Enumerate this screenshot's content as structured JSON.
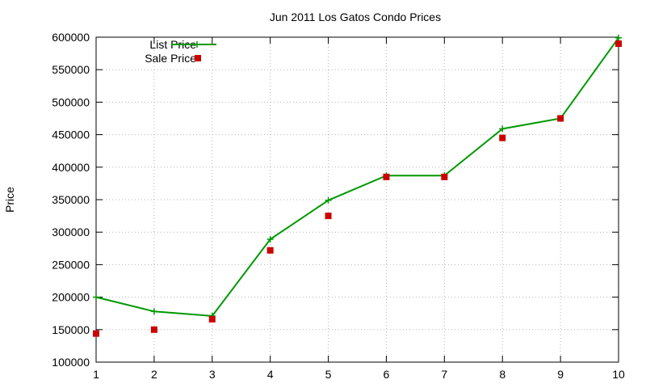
{
  "chart_data": {
    "type": "line",
    "title": "Jun 2011 Los Gatos Condo Prices",
    "xlabel": "",
    "ylabel": "Price",
    "x": [
      1,
      2,
      3,
      4,
      5,
      6,
      7,
      8,
      9,
      10
    ],
    "xlim": [
      1,
      10
    ],
    "ylim": [
      100000,
      600000
    ],
    "xticks": [
      "1",
      "2",
      "3",
      "4",
      "5",
      "6",
      "7",
      "8",
      "9",
      "10"
    ],
    "yticks": [
      "100000",
      "150000",
      "200000",
      "250000",
      "300000",
      "350000",
      "400000",
      "450000",
      "500000",
      "550000",
      "600000"
    ],
    "grid": true,
    "legend_position": "top-left",
    "series": [
      {
        "name": "List Price",
        "style": "line-with-plus-markers",
        "color": "#009900",
        "values": [
          200000,
          178000,
          171000,
          289000,
          349000,
          387000,
          387000,
          459000,
          475000,
          599000
        ]
      },
      {
        "name": "Sale Price",
        "style": "square-markers",
        "color": "#cc0000",
        "values": [
          144000,
          150000,
          166000,
          272000,
          325000,
          385000,
          385000,
          445000,
          475000,
          590000
        ]
      }
    ]
  }
}
